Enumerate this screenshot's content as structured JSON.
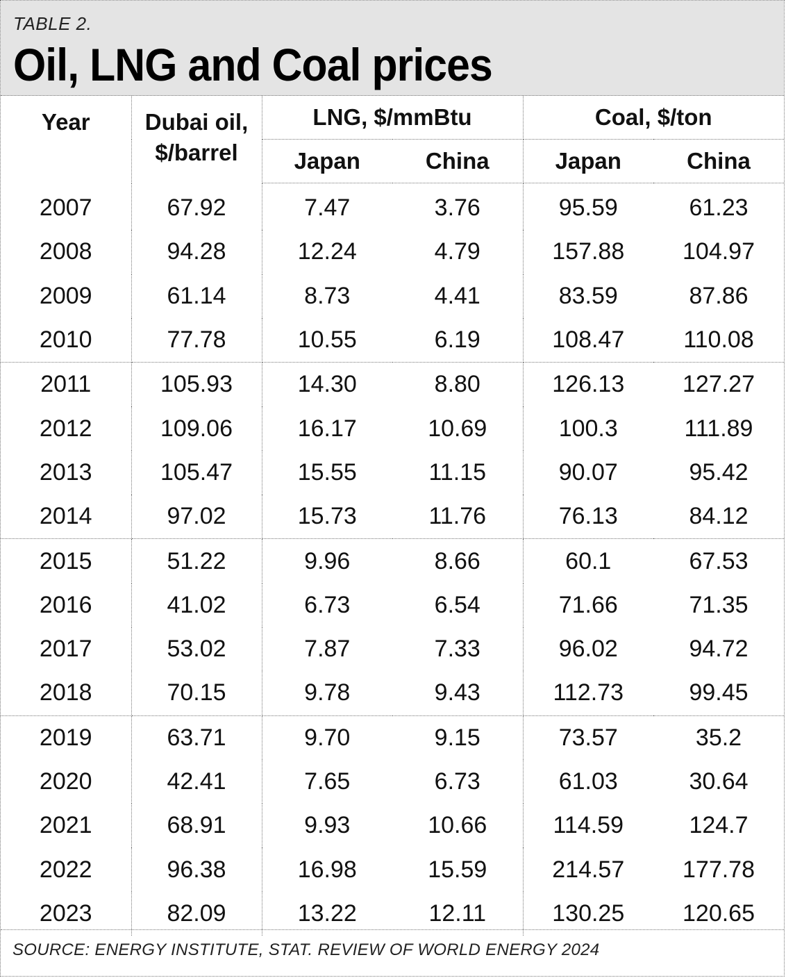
{
  "table_label": "TABLE 2.",
  "title": "Oil, LNG and Coal prices",
  "source": "SOURCE: ENERGY INSTITUTE, STAT. REVIEW OF WORLD ENERGY 2024",
  "headers": {
    "year": "Year",
    "oil_line1": "Dubai oil,",
    "oil_line2": "$/barrel",
    "lng": "LNG, $/mmBtu",
    "coal": "Coal, $/ton",
    "japan": "Japan",
    "china": "China"
  },
  "chart_data": {
    "type": "table",
    "title": "Oil, LNG and Coal prices",
    "columns": [
      "Year",
      "Dubai oil, $/barrel",
      "LNG Japan",
      "LNG China",
      "Coal Japan",
      "Coal China"
    ],
    "rows": [
      [
        "2007",
        "67.92",
        "7.47",
        "3.76",
        "95.59",
        "61.23"
      ],
      [
        "2008",
        "94.28",
        "12.24",
        "4.79",
        "157.88",
        "104.97"
      ],
      [
        "2009",
        "61.14",
        "8.73",
        "4.41",
        "83.59",
        "87.86"
      ],
      [
        "2010",
        "77.78",
        "10.55",
        "6.19",
        "108.47",
        "110.08"
      ],
      [
        "2011",
        "105.93",
        "14.30",
        "8.80",
        "126.13",
        "127.27"
      ],
      [
        "2012",
        "109.06",
        "16.17",
        "10.69",
        "100.3",
        "111.89"
      ],
      [
        "2013",
        "105.47",
        "15.55",
        "11.15",
        "90.07",
        "95.42"
      ],
      [
        "2014",
        "97.02",
        "15.73",
        "11.76",
        "76.13",
        "84.12"
      ],
      [
        "2015",
        "51.22",
        "9.96",
        "8.66",
        "60.1",
        "67.53"
      ],
      [
        "2016",
        "41.02",
        "6.73",
        "6.54",
        "71.66",
        "71.35"
      ],
      [
        "2017",
        "53.02",
        "7.87",
        "7.33",
        "96.02",
        "94.72"
      ],
      [
        "2018",
        "70.15",
        "9.78",
        "9.43",
        "112.73",
        "99.45"
      ],
      [
        "2019",
        "63.71",
        "9.70",
        "9.15",
        "73.57",
        "35.2"
      ],
      [
        "2020",
        "42.41",
        "7.65",
        "6.73",
        "61.03",
        "30.64"
      ],
      [
        "2021",
        "68.91",
        "9.93",
        "10.66",
        "114.59",
        "124.7"
      ],
      [
        "2022",
        "96.38",
        "16.98",
        "15.59",
        "214.57",
        "177.78"
      ],
      [
        "2023",
        "82.09",
        "13.22",
        "12.11",
        "130.25",
        "120.65"
      ]
    ],
    "group_breaks_after": [
      3,
      7,
      11
    ]
  }
}
